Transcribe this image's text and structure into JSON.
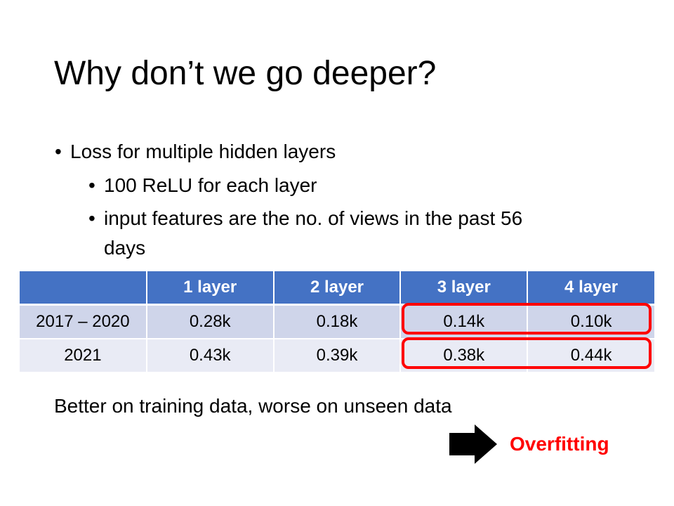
{
  "title": "Why don’t we go deeper?",
  "bullets": [
    {
      "text": "Loss for multiple hidden layers"
    },
    {
      "text": "100 ReLU for each layer"
    },
    {
      "text": "input features are the no. of views in the past 56 days",
      "line1": "input features are the no. of views in the past 56",
      "line2": "days"
    }
  ],
  "bullet_symbol": "•",
  "table": {
    "headers": [
      "",
      "1 layer",
      "2 layer",
      "3 layer",
      "4 layer"
    ],
    "rows": [
      [
        "2017 – 2020",
        "0.28k",
        "0.18k",
        "0.14k",
        "0.10k"
      ],
      [
        "2021",
        "0.43k",
        "0.39k",
        "0.38k",
        "0.44k"
      ]
    ]
  },
  "summary": "Better on training data, worse on unseen data",
  "conclusion": "Overfitting",
  "colors": {
    "header_bg": "#4472c4",
    "row1_bg": "#cfd5ea",
    "row2_bg": "#e9ebf5",
    "highlight": "#ff0000"
  },
  "icons": {
    "arrow": "right-arrow-icon"
  }
}
